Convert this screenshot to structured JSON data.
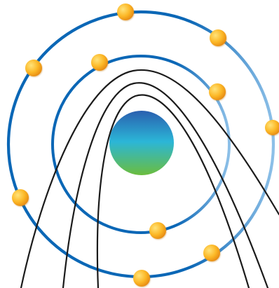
{
  "colors": {
    "background": "#ffffff",
    "orbit_ring": "#0b67b6",
    "orbit_ring_faded": "#8dc0e8",
    "electron": "#fcb827",
    "electron_highlight": "#ffe37a",
    "electron_shadow": "#e68a13",
    "trajectory_line": "#1b1b1b",
    "nucleus_top": "#2a5faf",
    "nucleus_middle": "#2bb6d7",
    "nucleus_bottom": "#6bbd3d"
  },
  "icons": {
    "nucleus": "nucleus-icon",
    "electron": "electron-icon",
    "orbit": "orbit-ring",
    "trajectory": "trajectory-curve"
  }
}
